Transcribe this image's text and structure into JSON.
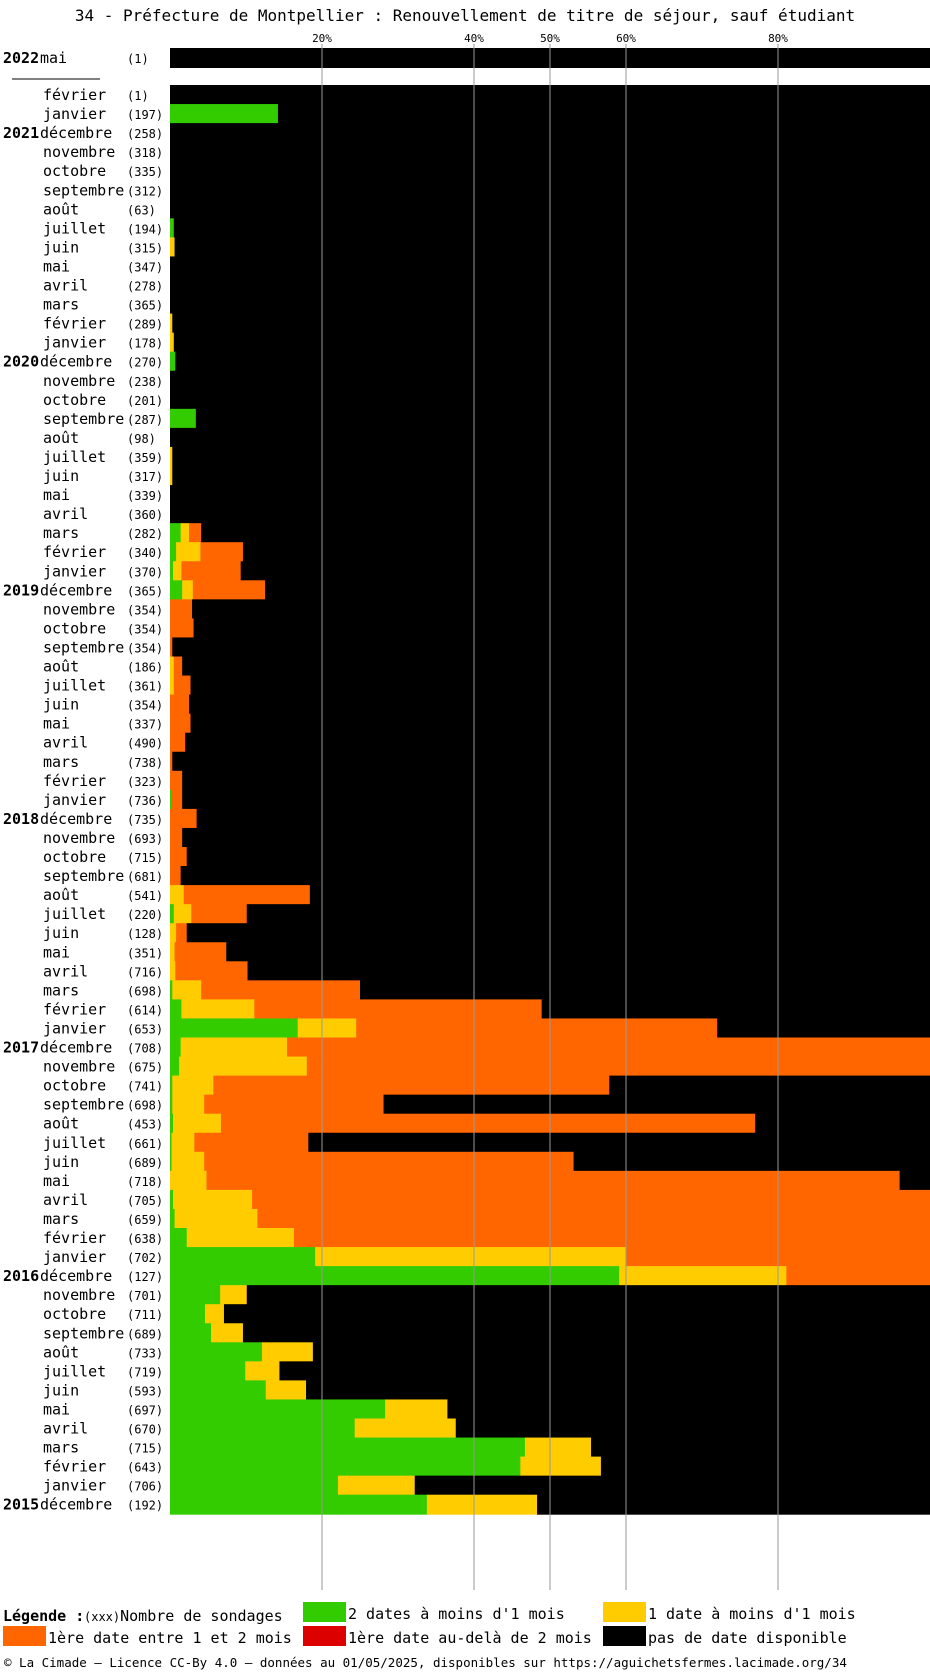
{
  "title": "34 - Préfecture de Montpellier : Renouvellement de titre de séjour, sauf étudiant",
  "colors": {
    "green": "#33cc00",
    "yellow": "#ffcc00",
    "orange": "#ff6600",
    "red": "#dd0000",
    "black": "#000000"
  },
  "chart_data": {
    "type": "bar",
    "orientation": "horizontal",
    "stacked": true,
    "x_ticks": [
      "20%",
      "40%",
      "50%",
      "60%",
      "80%"
    ],
    "xlim": [
      0,
      100
    ],
    "series_names": [
      "green",
      "yellow",
      "orange",
      "red",
      "black"
    ],
    "rows": [
      {
        "year": "2022",
        "month": "mai",
        "count": "(1)",
        "values": [
          0,
          0,
          0,
          0,
          100
        ]
      },
      {
        "year": "",
        "month": "février",
        "count": "(1)",
        "values": [
          0,
          0,
          0,
          0,
          100
        ]
      },
      {
        "year": "",
        "month": "janvier",
        "count": "(197)",
        "values": [
          14.2,
          0,
          0,
          0,
          85.8
        ]
      },
      {
        "year": "2021",
        "month": "décembre",
        "count": "(258)",
        "values": [
          0,
          0,
          0,
          0,
          100
        ]
      },
      {
        "year": "",
        "month": "novembre",
        "count": "(318)",
        "values": [
          0,
          0,
          0,
          0,
          100
        ]
      },
      {
        "year": "",
        "month": "octobre",
        "count": "(335)",
        "values": [
          0,
          0,
          0,
          0,
          100
        ]
      },
      {
        "year": "",
        "month": "septembre",
        "count": "(312)",
        "values": [
          0,
          0,
          0,
          0,
          100
        ]
      },
      {
        "year": "",
        "month": "août",
        "count": "(63)",
        "values": [
          0,
          0,
          0,
          0,
          100
        ]
      },
      {
        "year": "",
        "month": "juillet",
        "count": "(194)",
        "values": [
          0.5,
          0,
          0,
          0,
          99.5
        ]
      },
      {
        "year": "",
        "month": "juin",
        "count": "(315)",
        "values": [
          0,
          0.6,
          0,
          0,
          99.4
        ]
      },
      {
        "year": "",
        "month": "mai",
        "count": "(347)",
        "values": [
          0,
          0,
          0,
          0,
          100
        ]
      },
      {
        "year": "",
        "month": "avril",
        "count": "(278)",
        "values": [
          0,
          0,
          0,
          0,
          100
        ]
      },
      {
        "year": "",
        "month": "mars",
        "count": "(365)",
        "values": [
          0,
          0,
          0,
          0,
          100
        ]
      },
      {
        "year": "",
        "month": "février",
        "count": "(289)",
        "values": [
          0,
          0.3,
          0,
          0,
          99.7
        ]
      },
      {
        "year": "",
        "month": "janvier",
        "count": "(178)",
        "values": [
          0,
          0.5,
          0,
          0,
          99.5
        ]
      },
      {
        "year": "2020",
        "month": "décembre",
        "count": "(270)",
        "values": [
          0.7,
          0,
          0,
          0,
          99.3
        ]
      },
      {
        "year": "",
        "month": "novembre",
        "count": "(238)",
        "values": [
          0,
          0,
          0,
          0,
          100
        ]
      },
      {
        "year": "",
        "month": "octobre",
        "count": "(201)",
        "values": [
          0,
          0,
          0,
          0,
          100
        ]
      },
      {
        "year": "",
        "month": "septembre",
        "count": "(287)",
        "values": [
          3.4,
          0,
          0,
          0,
          96.6
        ]
      },
      {
        "year": "",
        "month": "août",
        "count": "(98)",
        "values": [
          0,
          0,
          0,
          0,
          100
        ]
      },
      {
        "year": "",
        "month": "juillet",
        "count": "(359)",
        "values": [
          0,
          0.3,
          0,
          0,
          99.7
        ]
      },
      {
        "year": "",
        "month": "juin",
        "count": "(317)",
        "values": [
          0,
          0.3,
          0,
          0,
          99.7
        ]
      },
      {
        "year": "",
        "month": "mai",
        "count": "(339)",
        "values": [
          0,
          0,
          0,
          0,
          100
        ]
      },
      {
        "year": "",
        "month": "avril",
        "count": "(360)",
        "values": [
          0,
          0,
          0,
          0,
          100
        ]
      },
      {
        "year": "",
        "month": "mars",
        "count": "(282)",
        "values": [
          1.4,
          1.1,
          1.6,
          0,
          95.9
        ]
      },
      {
        "year": "",
        "month": "février",
        "count": "(340)",
        "values": [
          0.8,
          3.2,
          5.6,
          0,
          90.4
        ]
      },
      {
        "year": "",
        "month": "janvier",
        "count": "(370)",
        "values": [
          0.4,
          1.1,
          7.8,
          0,
          90.7
        ]
      },
      {
        "year": "2019",
        "month": "décembre",
        "count": "(365)",
        "values": [
          1.6,
          1.4,
          9.5,
          0,
          87.5
        ]
      },
      {
        "year": "",
        "month": "novembre",
        "count": "(354)",
        "values": [
          0,
          0,
          2.9,
          0,
          97.1
        ]
      },
      {
        "year": "",
        "month": "octobre",
        "count": "(354)",
        "values": [
          0,
          0,
          3.1,
          0,
          96.9
        ]
      },
      {
        "year": "",
        "month": "septembre",
        "count": "(354)",
        "values": [
          0,
          0,
          0.3,
          0,
          99.7
        ]
      },
      {
        "year": "",
        "month": "août",
        "count": "(186)",
        "values": [
          0,
          0.5,
          1.1,
          0,
          98.4
        ]
      },
      {
        "year": "",
        "month": "juillet",
        "count": "(361)",
        "values": [
          0,
          0.5,
          2.2,
          0,
          97.3
        ]
      },
      {
        "year": "",
        "month": "juin",
        "count": "(354)",
        "values": [
          0,
          0,
          2.5,
          0,
          97.5
        ]
      },
      {
        "year": "",
        "month": "mai",
        "count": "(337)",
        "values": [
          0,
          0,
          2.7,
          0,
          97.3
        ]
      },
      {
        "year": "",
        "month": "avril",
        "count": "(490)",
        "values": [
          0,
          0,
          2.0,
          0,
          98.0
        ]
      },
      {
        "year": "",
        "month": "mars",
        "count": "(738)",
        "values": [
          0,
          0,
          0.3,
          0,
          99.7
        ]
      },
      {
        "year": "",
        "month": "février",
        "count": "(323)",
        "values": [
          0,
          0,
          1.6,
          0,
          98.4
        ]
      },
      {
        "year": "",
        "month": "janvier",
        "count": "(736)",
        "values": [
          0.2,
          0,
          1.4,
          0,
          98.4
        ]
      },
      {
        "year": "2018",
        "month": "décembre",
        "count": "(735)",
        "values": [
          0,
          0,
          3.5,
          0,
          96.5
        ]
      },
      {
        "year": "",
        "month": "novembre",
        "count": "(693)",
        "values": [
          0,
          0,
          1.6,
          0,
          98.4
        ]
      },
      {
        "year": "",
        "month": "octobre",
        "count": "(715)",
        "values": [
          0,
          0,
          2.2,
          0,
          97.8
        ]
      },
      {
        "year": "",
        "month": "septembre",
        "count": "(681)",
        "values": [
          0,
          0,
          1.4,
          0,
          98.6
        ]
      },
      {
        "year": "",
        "month": "août",
        "count": "(541)",
        "values": [
          0,
          1.8,
          16.6,
          0,
          81.6
        ]
      },
      {
        "year": "",
        "month": "juillet",
        "count": "(220)",
        "values": [
          0.5,
          2.3,
          7.3,
          0,
          89.9
        ]
      },
      {
        "year": "",
        "month": "juin",
        "count": "(128)",
        "values": [
          0,
          0.8,
          1.4,
          0,
          97.8
        ]
      },
      {
        "year": "",
        "month": "mai",
        "count": "(351)",
        "values": [
          0,
          0.6,
          6.8,
          0,
          92.6
        ]
      },
      {
        "year": "",
        "month": "avril",
        "count": "(716)",
        "values": [
          0,
          0.7,
          9.5,
          0,
          89.8
        ]
      },
      {
        "year": "",
        "month": "mars",
        "count": "(698)",
        "values": [
          0.3,
          3.8,
          20.9,
          0,
          75.0
        ]
      },
      {
        "year": "",
        "month": "février",
        "count": "(614)",
        "values": [
          1.5,
          9.6,
          37.8,
          0,
          51.1
        ]
      },
      {
        "year": "",
        "month": "janvier",
        "count": "(653)",
        "values": [
          16.8,
          7.7,
          47.5,
          0,
          28.0
        ]
      },
      {
        "year": "2017",
        "month": "décembre",
        "count": "(708)",
        "values": [
          1.4,
          14.0,
          84.6,
          0,
          0
        ]
      },
      {
        "year": "",
        "month": "novembre",
        "count": "(675)",
        "values": [
          1.2,
          16.8,
          82.0,
          0,
          0
        ]
      },
      {
        "year": "",
        "month": "octobre",
        "count": "(741)",
        "values": [
          0.3,
          5.4,
          52.1,
          0,
          42.2
        ]
      },
      {
        "year": "",
        "month": "septembre",
        "count": "(698)",
        "values": [
          0.3,
          4.2,
          23.6,
          0,
          71.9
        ]
      },
      {
        "year": "",
        "month": "août",
        "count": "(453)",
        "values": [
          0.4,
          6.3,
          70.3,
          0,
          23.0
        ]
      },
      {
        "year": "",
        "month": "juillet",
        "count": "(661)",
        "values": [
          0.2,
          3.0,
          15.0,
          0,
          81.8
        ]
      },
      {
        "year": "",
        "month": "juin",
        "count": "(689)",
        "values": [
          0.2,
          4.3,
          48.6,
          0,
          46.9
        ]
      },
      {
        "year": "",
        "month": "mai",
        "count": "(718)",
        "values": [
          0,
          4.8,
          91.2,
          0,
          4.0
        ]
      },
      {
        "year": "",
        "month": "avril",
        "count": "(705)",
        "values": [
          0.4,
          10.4,
          89.2,
          0,
          0
        ]
      },
      {
        "year": "",
        "month": "mars",
        "count": "(659)",
        "values": [
          0.6,
          10.9,
          88.5,
          0,
          0
        ]
      },
      {
        "year": "",
        "month": "février",
        "count": "(638)",
        "values": [
          2.2,
          14.1,
          83.7,
          0,
          0
        ]
      },
      {
        "year": "",
        "month": "janvier",
        "count": "(702)",
        "values": [
          19.1,
          40.9,
          40.0,
          0,
          0
        ]
      },
      {
        "year": "2016",
        "month": "décembre",
        "count": "(127)",
        "values": [
          59.1,
          22.0,
          18.9,
          0,
          0
        ]
      },
      {
        "year": "",
        "month": "novembre",
        "count": "(701)",
        "values": [
          6.6,
          3.5,
          0,
          0,
          89.9
        ]
      },
      {
        "year": "",
        "month": "octobre",
        "count": "(711)",
        "values": [
          4.6,
          2.5,
          0,
          0,
          92.9
        ]
      },
      {
        "year": "",
        "month": "septembre",
        "count": "(689)",
        "values": [
          5.4,
          4.2,
          0,
          0,
          90.4
        ]
      },
      {
        "year": "",
        "month": "août",
        "count": "(733)",
        "values": [
          12.1,
          6.7,
          0,
          0,
          81.2
        ]
      },
      {
        "year": "",
        "month": "juillet",
        "count": "(719)",
        "values": [
          9.9,
          4.5,
          0,
          0,
          85.6
        ]
      },
      {
        "year": "",
        "month": "juin",
        "count": "(593)",
        "values": [
          12.6,
          5.3,
          0,
          0,
          82.1
        ]
      },
      {
        "year": "",
        "month": "mai",
        "count": "(697)",
        "values": [
          28.3,
          8.2,
          0,
          0,
          63.5
        ]
      },
      {
        "year": "",
        "month": "avril",
        "count": "(670)",
        "values": [
          24.3,
          13.3,
          0,
          0,
          62.4
        ]
      },
      {
        "year": "",
        "month": "mars",
        "count": "(715)",
        "values": [
          46.7,
          8.7,
          0,
          0,
          44.6
        ]
      },
      {
        "year": "",
        "month": "février",
        "count": "(643)",
        "values": [
          46.1,
          10.6,
          0,
          0,
          43.3
        ]
      },
      {
        "year": "",
        "month": "janvier",
        "count": "(706)",
        "values": [
          22.1,
          10.1,
          0,
          0,
          67.8
        ]
      },
      {
        "year": "2015",
        "month": "décembre",
        "count": "(192)",
        "values": [
          33.8,
          14.5,
          0,
          0,
          51.7
        ]
      }
    ]
  },
  "legend": {
    "label": "Légende :",
    "count_label": "(xxx)Nombre de sondages",
    "items": [
      {
        "color": "#33cc00",
        "text": "2 dates à moins d'1 mois"
      },
      {
        "color": "#ffcc00",
        "text": "1 date à moins d'1 mois"
      },
      {
        "color": "#ff6600",
        "text": "1ère date entre 1 et 2 mois"
      },
      {
        "color": "#dd0000",
        "text": "1ère date au-delà de 2 mois"
      },
      {
        "color": "#000000",
        "text": "pas de date disponible"
      }
    ]
  },
  "footer": "© La Cimade – Licence CC-By 4.0 – données au 01/05/2025, disponibles sur https://aguichetsfermes.lacimade.org/34"
}
